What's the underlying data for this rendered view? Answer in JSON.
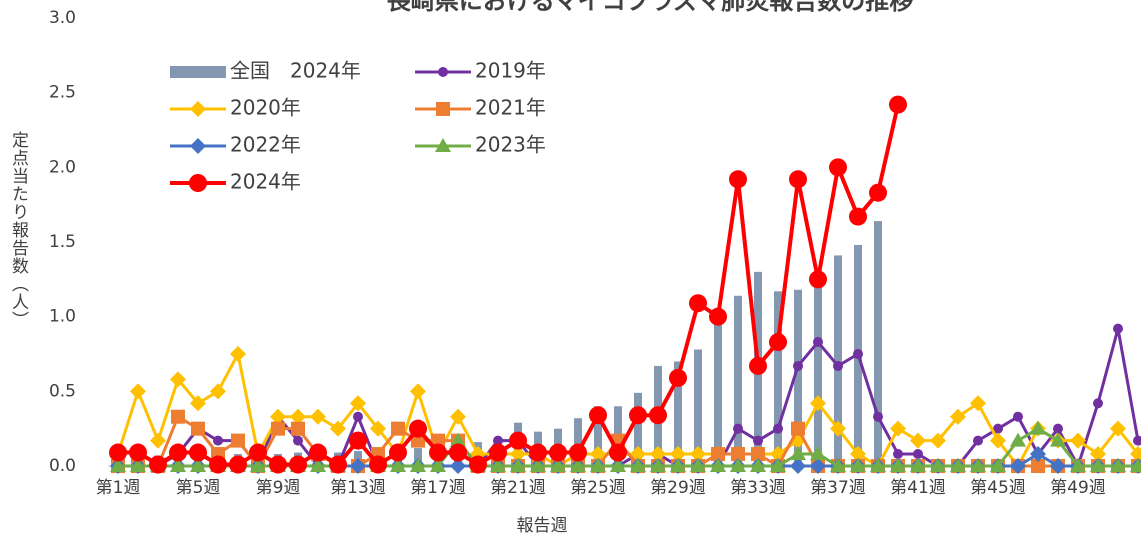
{
  "chart_data": {
    "type": "combo",
    "title": "長崎県におけるマイコプラズマ肺炎報告数の推移",
    "ylabel": "定点当たり報告数（人）",
    "xlabel": "報告週",
    "categories": [
      "第1週",
      null,
      null,
      null,
      "第5週",
      null,
      null,
      null,
      "第9週",
      null,
      null,
      null,
      "第13週",
      null,
      null,
      null,
      "第17週",
      null,
      null,
      null,
      "第21週",
      null,
      null,
      null,
      "第25週",
      null,
      null,
      null,
      "第29週",
      null,
      null,
      null,
      "第33週",
      null,
      null,
      null,
      "第37週",
      null,
      null,
      null,
      "第41週",
      null,
      null,
      null,
      "第45週",
      null,
      null,
      null,
      "第49週",
      null,
      null,
      null
    ],
    "ylim": [
      0,
      3
    ],
    "yticks": [
      {
        "value": 0,
        "label": "0.0"
      },
      0.5,
      {
        "value": 1,
        "label": "1.0"
      },
      1.5,
      {
        "value": 2,
        "label": "2.0"
      },
      2.5,
      {
        "value": 3,
        "label": "3.0"
      }
    ],
    "grid": false,
    "series": [
      {
        "name": "全国　2024年",
        "type": "bar",
        "color": "#8497b0",
        "values": [
          0.08,
          0.08,
          0.07,
          0.07,
          0.08,
          0.08,
          0.08,
          0.08,
          0.08,
          0.09,
          0.09,
          0.09,
          0.1,
          0.1,
          0.11,
          0.12,
          0.13,
          0.14,
          0.16,
          0.18,
          0.29,
          0.23,
          0.25,
          0.32,
          0.4,
          0.4,
          0.49,
          0.67,
          0.7,
          0.78,
          0.97,
          1.14,
          1.3,
          1.17,
          1.18,
          1.25,
          1.41,
          1.48,
          1.64,
          null,
          null,
          null,
          null,
          null,
          null,
          null,
          null,
          null,
          null,
          null,
          null,
          null
        ]
      },
      {
        "name": "2019年",
        "type": "line",
        "marker": "circle",
        "color": "#7030a0",
        "values": [
          0,
          0,
          0,
          0.08,
          0.25,
          0.17,
          0.17,
          0,
          0.33,
          0.17,
          0,
          0,
          0.33,
          0,
          0,
          0,
          0,
          0,
          0,
          0.17,
          0.17,
          0,
          0,
          0,
          0,
          0,
          0.08,
          0.08,
          0,
          0,
          0,
          0.25,
          0.17,
          0.25,
          0.67,
          0.83,
          0.67,
          0.75,
          0.33,
          0.08,
          0.08,
          0,
          0,
          0.17,
          0.25,
          0.33,
          0.08,
          0.25,
          0,
          0.42,
          0.92,
          0.17
        ]
      },
      {
        "name": "2020年",
        "type": "line",
        "marker": "diamond",
        "color": "#ffc000",
        "values": [
          0.08,
          0.5,
          0.17,
          0.58,
          0.42,
          0.5,
          0.75,
          0.08,
          0.33,
          0.33,
          0.33,
          0.25,
          0.42,
          0.25,
          0.08,
          0.5,
          0.08,
          0.33,
          0.08,
          0.08,
          0.08,
          0.08,
          0,
          0.08,
          0.08,
          0.08,
          0.08,
          0.08,
          0.08,
          0.08,
          0.08,
          0.08,
          0.08,
          0.08,
          0.17,
          0.42,
          0.25,
          0.08,
          0,
          0.25,
          0.17,
          0.17,
          0.33,
          0.42,
          0.17,
          0,
          0.25,
          0.17,
          0.17,
          0.08,
          0.25,
          0.08
        ]
      },
      {
        "name": "2021年",
        "type": "line",
        "marker": "square",
        "color": "#ed7d31",
        "values": [
          0,
          0,
          0,
          0.33,
          0.25,
          0.08,
          0.17,
          0,
          0.25,
          0.25,
          0.08,
          0,
          0,
          0.08,
          0.25,
          0.17,
          0.17,
          0.17,
          0,
          0,
          0,
          0,
          0,
          0,
          0,
          0.17,
          0,
          0,
          0,
          0,
          0.08,
          0.08,
          0.08,
          0,
          0.25,
          0,
          0,
          0,
          0,
          0,
          0,
          0,
          0,
          0,
          0,
          0,
          0,
          0,
          0,
          0,
          0,
          0
        ]
      },
      {
        "name": "2022年",
        "type": "line",
        "marker": "diamond",
        "color": "#4472c4",
        "values": [
          0,
          0,
          0,
          0,
          0,
          0,
          0,
          0,
          0,
          0,
          0,
          0,
          0,
          0,
          0,
          0,
          0,
          0,
          0,
          0,
          0,
          0,
          0,
          0,
          0,
          0,
          0,
          0,
          0,
          0,
          0,
          0,
          0,
          0,
          0,
          0,
          0,
          0,
          0,
          0,
          0,
          0,
          0,
          0,
          0,
          0,
          0.08,
          0,
          0,
          0,
          0,
          0
        ]
      },
      {
        "name": "2023年",
        "type": "line",
        "marker": "triangle",
        "color": "#70ad47",
        "values": [
          0,
          0,
          0,
          0,
          0,
          0,
          0,
          0,
          0,
          0,
          0,
          0,
          0.17,
          0,
          0,
          0,
          0,
          0.17,
          0,
          0,
          0,
          0,
          0,
          0,
          0,
          0,
          0,
          0,
          0,
          0,
          0,
          0,
          0,
          0,
          0.08,
          0.08,
          0,
          0,
          0,
          0,
          0,
          0,
          0,
          0,
          0,
          0.17,
          0.25,
          0.17,
          0,
          0,
          0,
          0
        ]
      },
      {
        "name": "2024年",
        "type": "line",
        "marker": "bigcircle",
        "color": "#ff0000",
        "values": [
          0.09,
          0.09,
          0.01,
          0.09,
          0.09,
          0.01,
          0.01,
          0.09,
          0.01,
          0.01,
          0.09,
          0.01,
          0.17,
          0.01,
          0.09,
          0.25,
          0.09,
          0.09,
          0.01,
          0.09,
          0.17,
          0.09,
          0.09,
          0.09,
          0.34,
          0.09,
          0.34,
          0.34,
          0.59,
          1.09,
          1,
          1.92,
          0.67,
          0.83,
          1.92,
          1.25,
          2,
          1.67,
          1.83,
          2.42,
          null,
          null,
          null,
          null,
          null,
          null,
          null,
          null,
          null,
          null,
          null,
          null
        ]
      }
    ]
  }
}
